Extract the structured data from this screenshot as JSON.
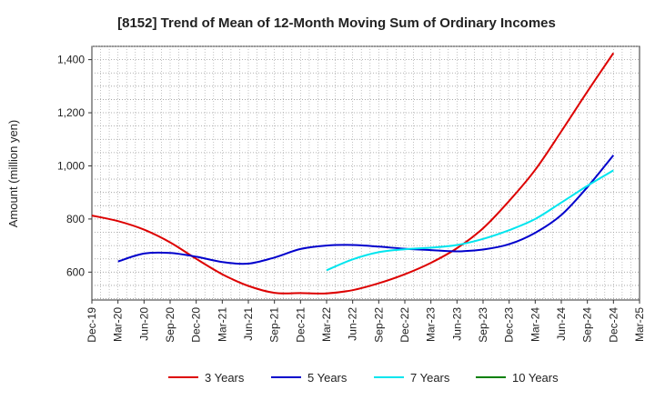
{
  "chart_data": {
    "type": "line",
    "title": "[8152]  Trend of Mean of 12-Month Moving Sum of Ordinary Incomes",
    "xlabel": "",
    "ylabel": "Amount (million yen)",
    "ylim": [
      495,
      1450
    ],
    "yticks": [
      600,
      800,
      1000,
      1200,
      1400
    ],
    "ytick_labels": [
      "600",
      "800",
      "1,000",
      "1,200",
      "1,400"
    ],
    "categories": [
      "Dec-19",
      "Mar-20",
      "Jun-20",
      "Sep-20",
      "Dec-20",
      "Mar-21",
      "Jun-21",
      "Sep-21",
      "Dec-21",
      "Mar-22",
      "Jun-22",
      "Sep-22",
      "Dec-22",
      "Mar-23",
      "Jun-23",
      "Sep-23",
      "Dec-23",
      "Mar-24",
      "Jun-24",
      "Sep-24",
      "Dec-24",
      "Mar-25"
    ],
    "grid": true,
    "legend_position": "bottom",
    "series": [
      {
        "name": "3 Years",
        "color": "#dd0000",
        "values": [
          813,
          792,
          760,
          712,
          650,
          592,
          548,
          522,
          521,
          520,
          532,
          558,
          592,
          635,
          690,
          765,
          868,
          985,
          1130,
          1280,
          1425,
          null
        ]
      },
      {
        "name": "5 Years",
        "color": "#0000cc",
        "values": [
          null,
          640,
          670,
          672,
          658,
          638,
          632,
          655,
          687,
          700,
          702,
          696,
          688,
          683,
          678,
          685,
          705,
          748,
          815,
          920,
          1040,
          null
        ]
      },
      {
        "name": "7 Years",
        "color": "#00e5ee",
        "values": [
          null,
          null,
          null,
          null,
          null,
          null,
          null,
          null,
          null,
          607,
          648,
          675,
          686,
          692,
          702,
          725,
          758,
          800,
          862,
          925,
          983,
          null
        ]
      },
      {
        "name": "10 Years",
        "color": "#008000",
        "values": [
          null,
          null,
          null,
          null,
          null,
          null,
          null,
          null,
          null,
          null,
          null,
          null,
          null,
          null,
          null,
          null,
          null,
          null,
          null,
          null,
          null,
          null
        ]
      }
    ]
  }
}
